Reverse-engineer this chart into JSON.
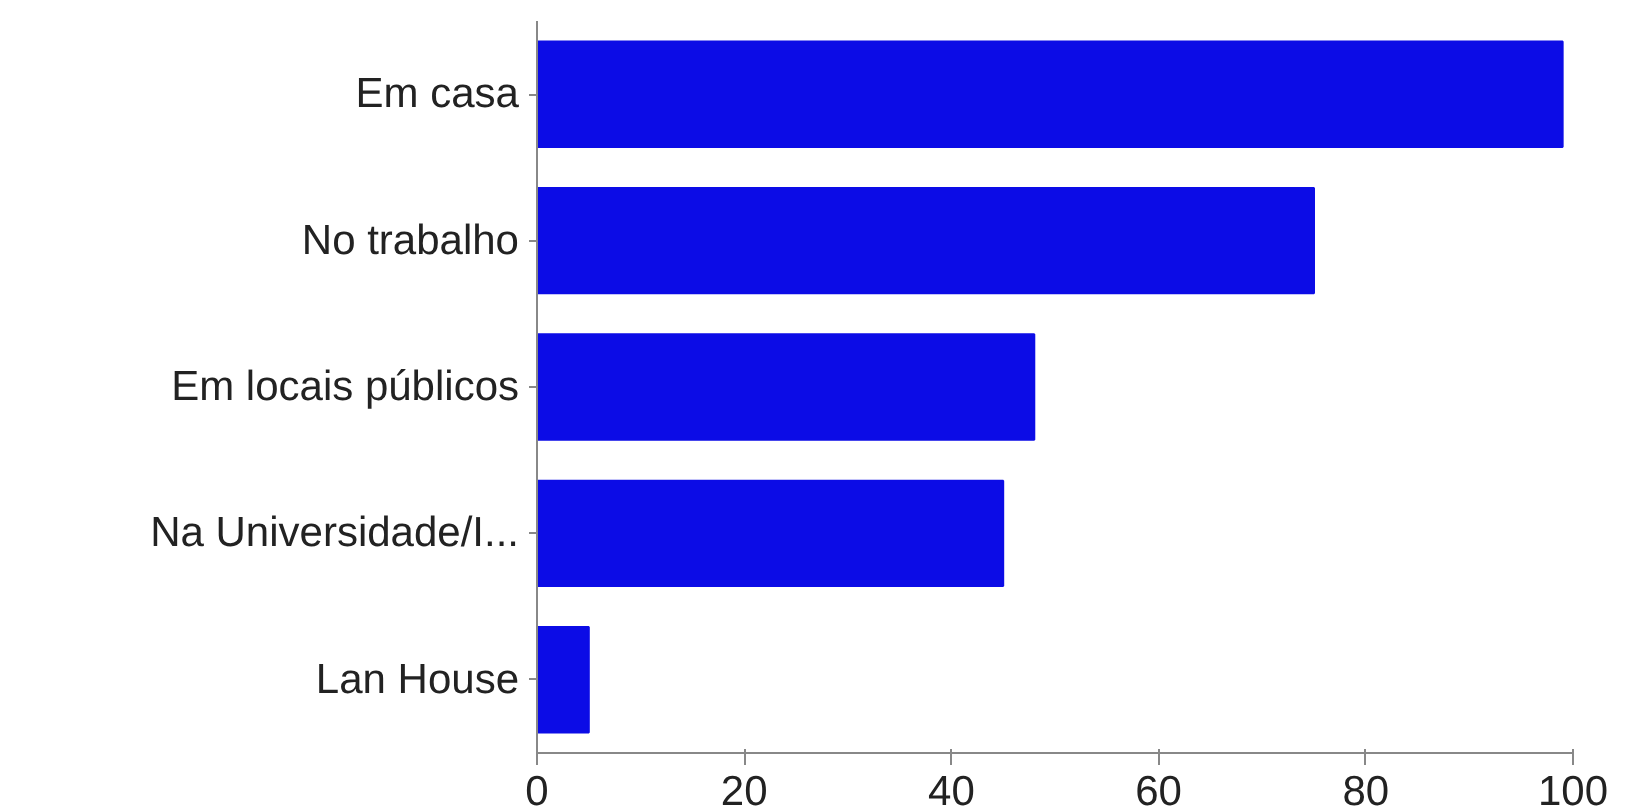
{
  "chart_data": {
    "type": "bar",
    "orientation": "horizontal",
    "categories": [
      "Em casa",
      "No trabalho",
      "Em locais públicos",
      "Na Universidade/I...",
      "Lan House"
    ],
    "values": [
      99,
      75,
      48,
      45,
      5
    ],
    "color": "#0c0ce6",
    "xlim": [
      0,
      100
    ],
    "xticks": [
      0,
      20,
      40,
      60,
      80,
      100
    ],
    "grid": false
  }
}
